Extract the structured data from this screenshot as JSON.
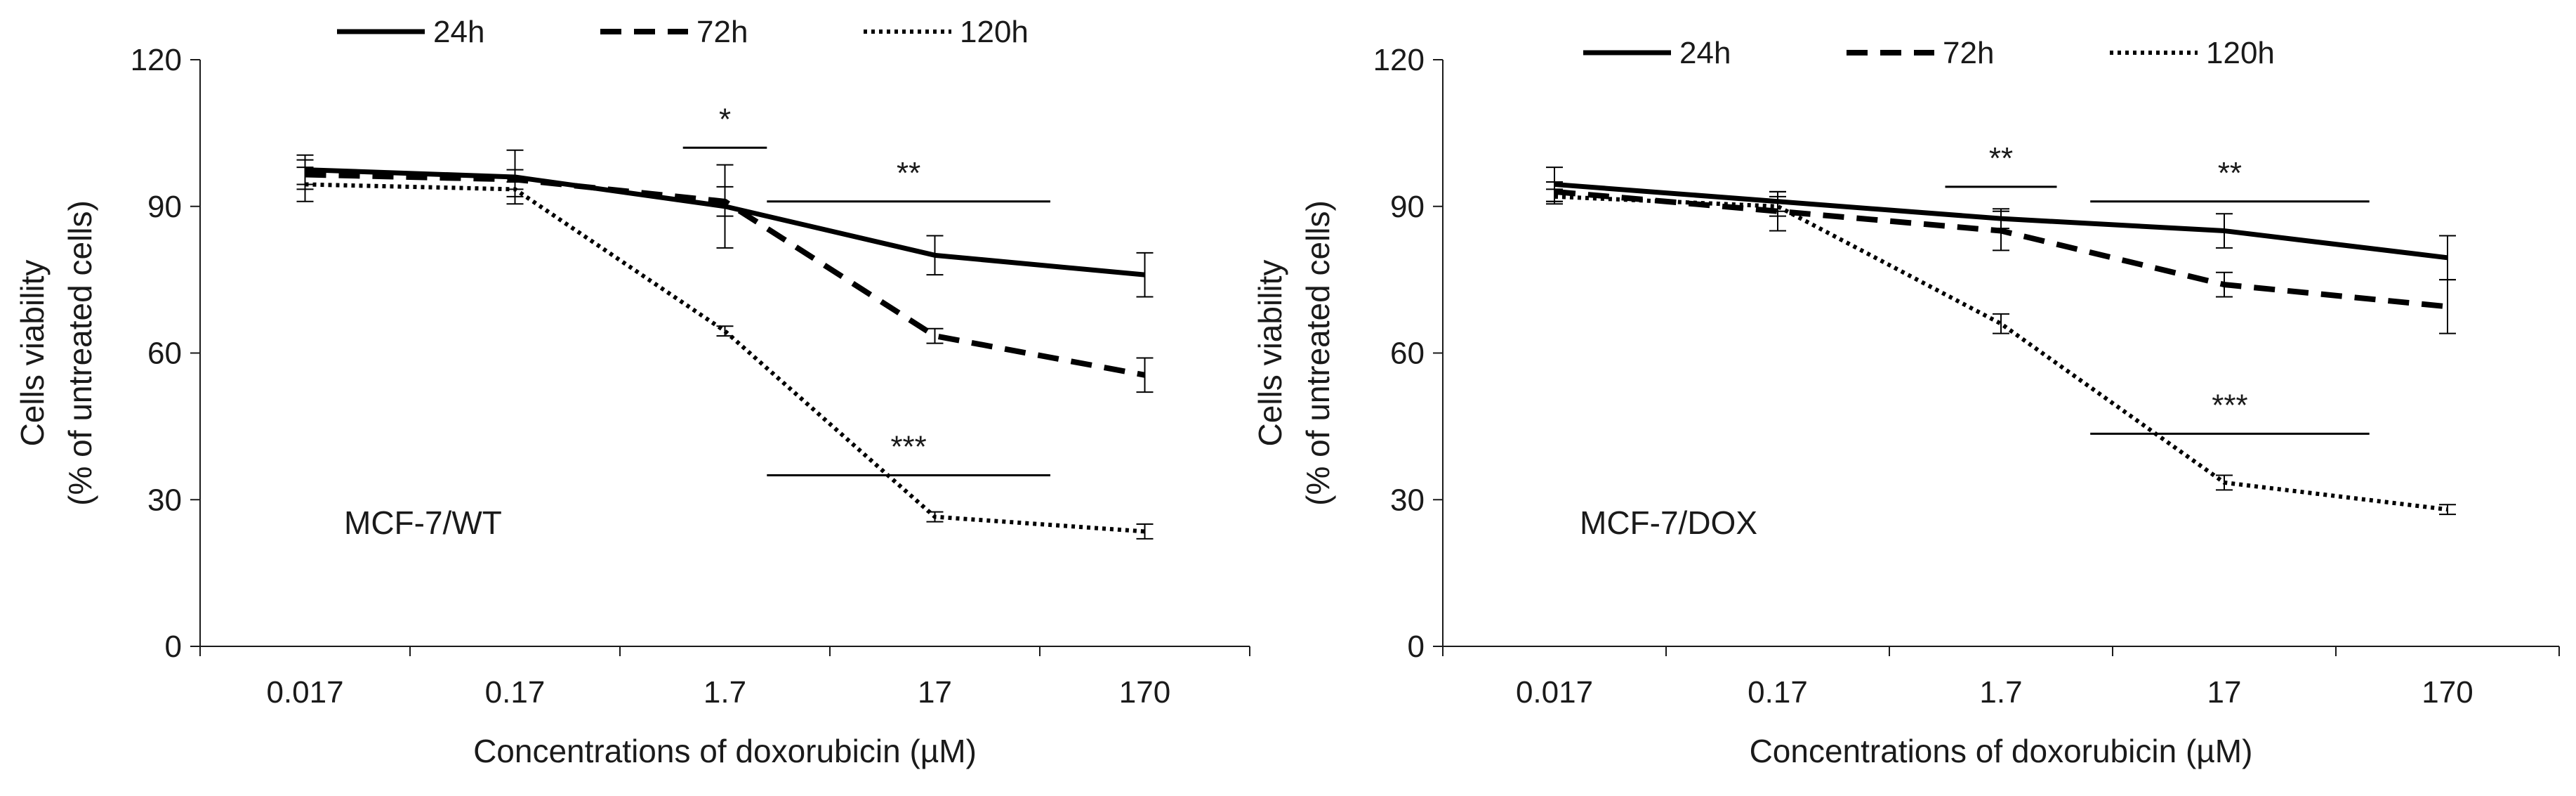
{
  "chart_data": [
    {
      "type": "line",
      "panel_label": "MCF-7/WT",
      "categories": [
        "0.017",
        "0.17",
        "1.7",
        "17",
        "170"
      ],
      "xlabel": "Concentrations of doxorubicin (µM)",
      "ylabel_line1": "Cells viability",
      "ylabel_line2": "(% of untreated cells)",
      "ylim": [
        0,
        120
      ],
      "yticks": [
        "0",
        "30",
        "60",
        "90",
        "120"
      ],
      "legend_position": "top",
      "grid": false,
      "series": [
        {
          "name": "24h",
          "style": "solid",
          "values": [
            97.5,
            96,
            90,
            80,
            76
          ],
          "errors": [
            3,
            5.5,
            8.5,
            4,
            4.5
          ]
        },
        {
          "name": "72h",
          "style": "dashed",
          "values": [
            96.5,
            95.5,
            91,
            63.5,
            55.5
          ],
          "errors": [
            3,
            2,
            3,
            1.5,
            3.5
          ]
        },
        {
          "name": "120h",
          "style": "dotted",
          "values": [
            94.5,
            93.5,
            64.5,
            26.5,
            23.5
          ],
          "errors": [
            3.5,
            1.5,
            1,
            1,
            1.5
          ]
        }
      ],
      "significance": [
        {
          "label": "*",
          "y": 102,
          "from": 2.3,
          "to": 2.7
        },
        {
          "label": "**",
          "y": 91,
          "from": 2.7,
          "to": 4.05
        },
        {
          "label": "***",
          "y": 35,
          "from": 2.7,
          "to": 4.05
        }
      ]
    },
    {
      "type": "line",
      "panel_label": "MCF-7/DOX",
      "categories": [
        "0.017",
        "0.17",
        "1.7",
        "17",
        "170"
      ],
      "xlabel": "Concentrations of doxorubicin (µM)",
      "ylabel_line1": "Cells viability",
      "ylabel_line2": "(% of untreated cells)",
      "ylim": [
        0,
        120
      ],
      "yticks": [
        "0",
        "30",
        "60",
        "90",
        "120"
      ],
      "legend_position": "top",
      "grid": false,
      "series": [
        {
          "name": "24h",
          "style": "solid",
          "values": [
            94.5,
            91,
            87.5,
            85,
            79.5
          ],
          "errors": [
            3.5,
            2,
            2,
            3.5,
            4.5
          ]
        },
        {
          "name": "72h",
          "style": "dashed",
          "values": [
            93,
            89,
            85,
            74,
            69.5
          ],
          "errors": [
            2,
            4,
            4,
            2.5,
            5.5
          ]
        },
        {
          "name": "120h",
          "style": "dotted",
          "values": [
            92,
            90,
            66,
            33.5,
            28
          ],
          "errors": [
            1.5,
            2,
            2,
            1.5,
            1
          ]
        }
      ],
      "significance": [
        {
          "label": "**",
          "y": 94,
          "from": 2.25,
          "to": 2.75
        },
        {
          "label": "**",
          "y": 91,
          "from": 2.9,
          "to": 4.15
        },
        {
          "label": "***",
          "y": 43.5,
          "from": 2.9,
          "to": 4.15
        }
      ]
    }
  ]
}
